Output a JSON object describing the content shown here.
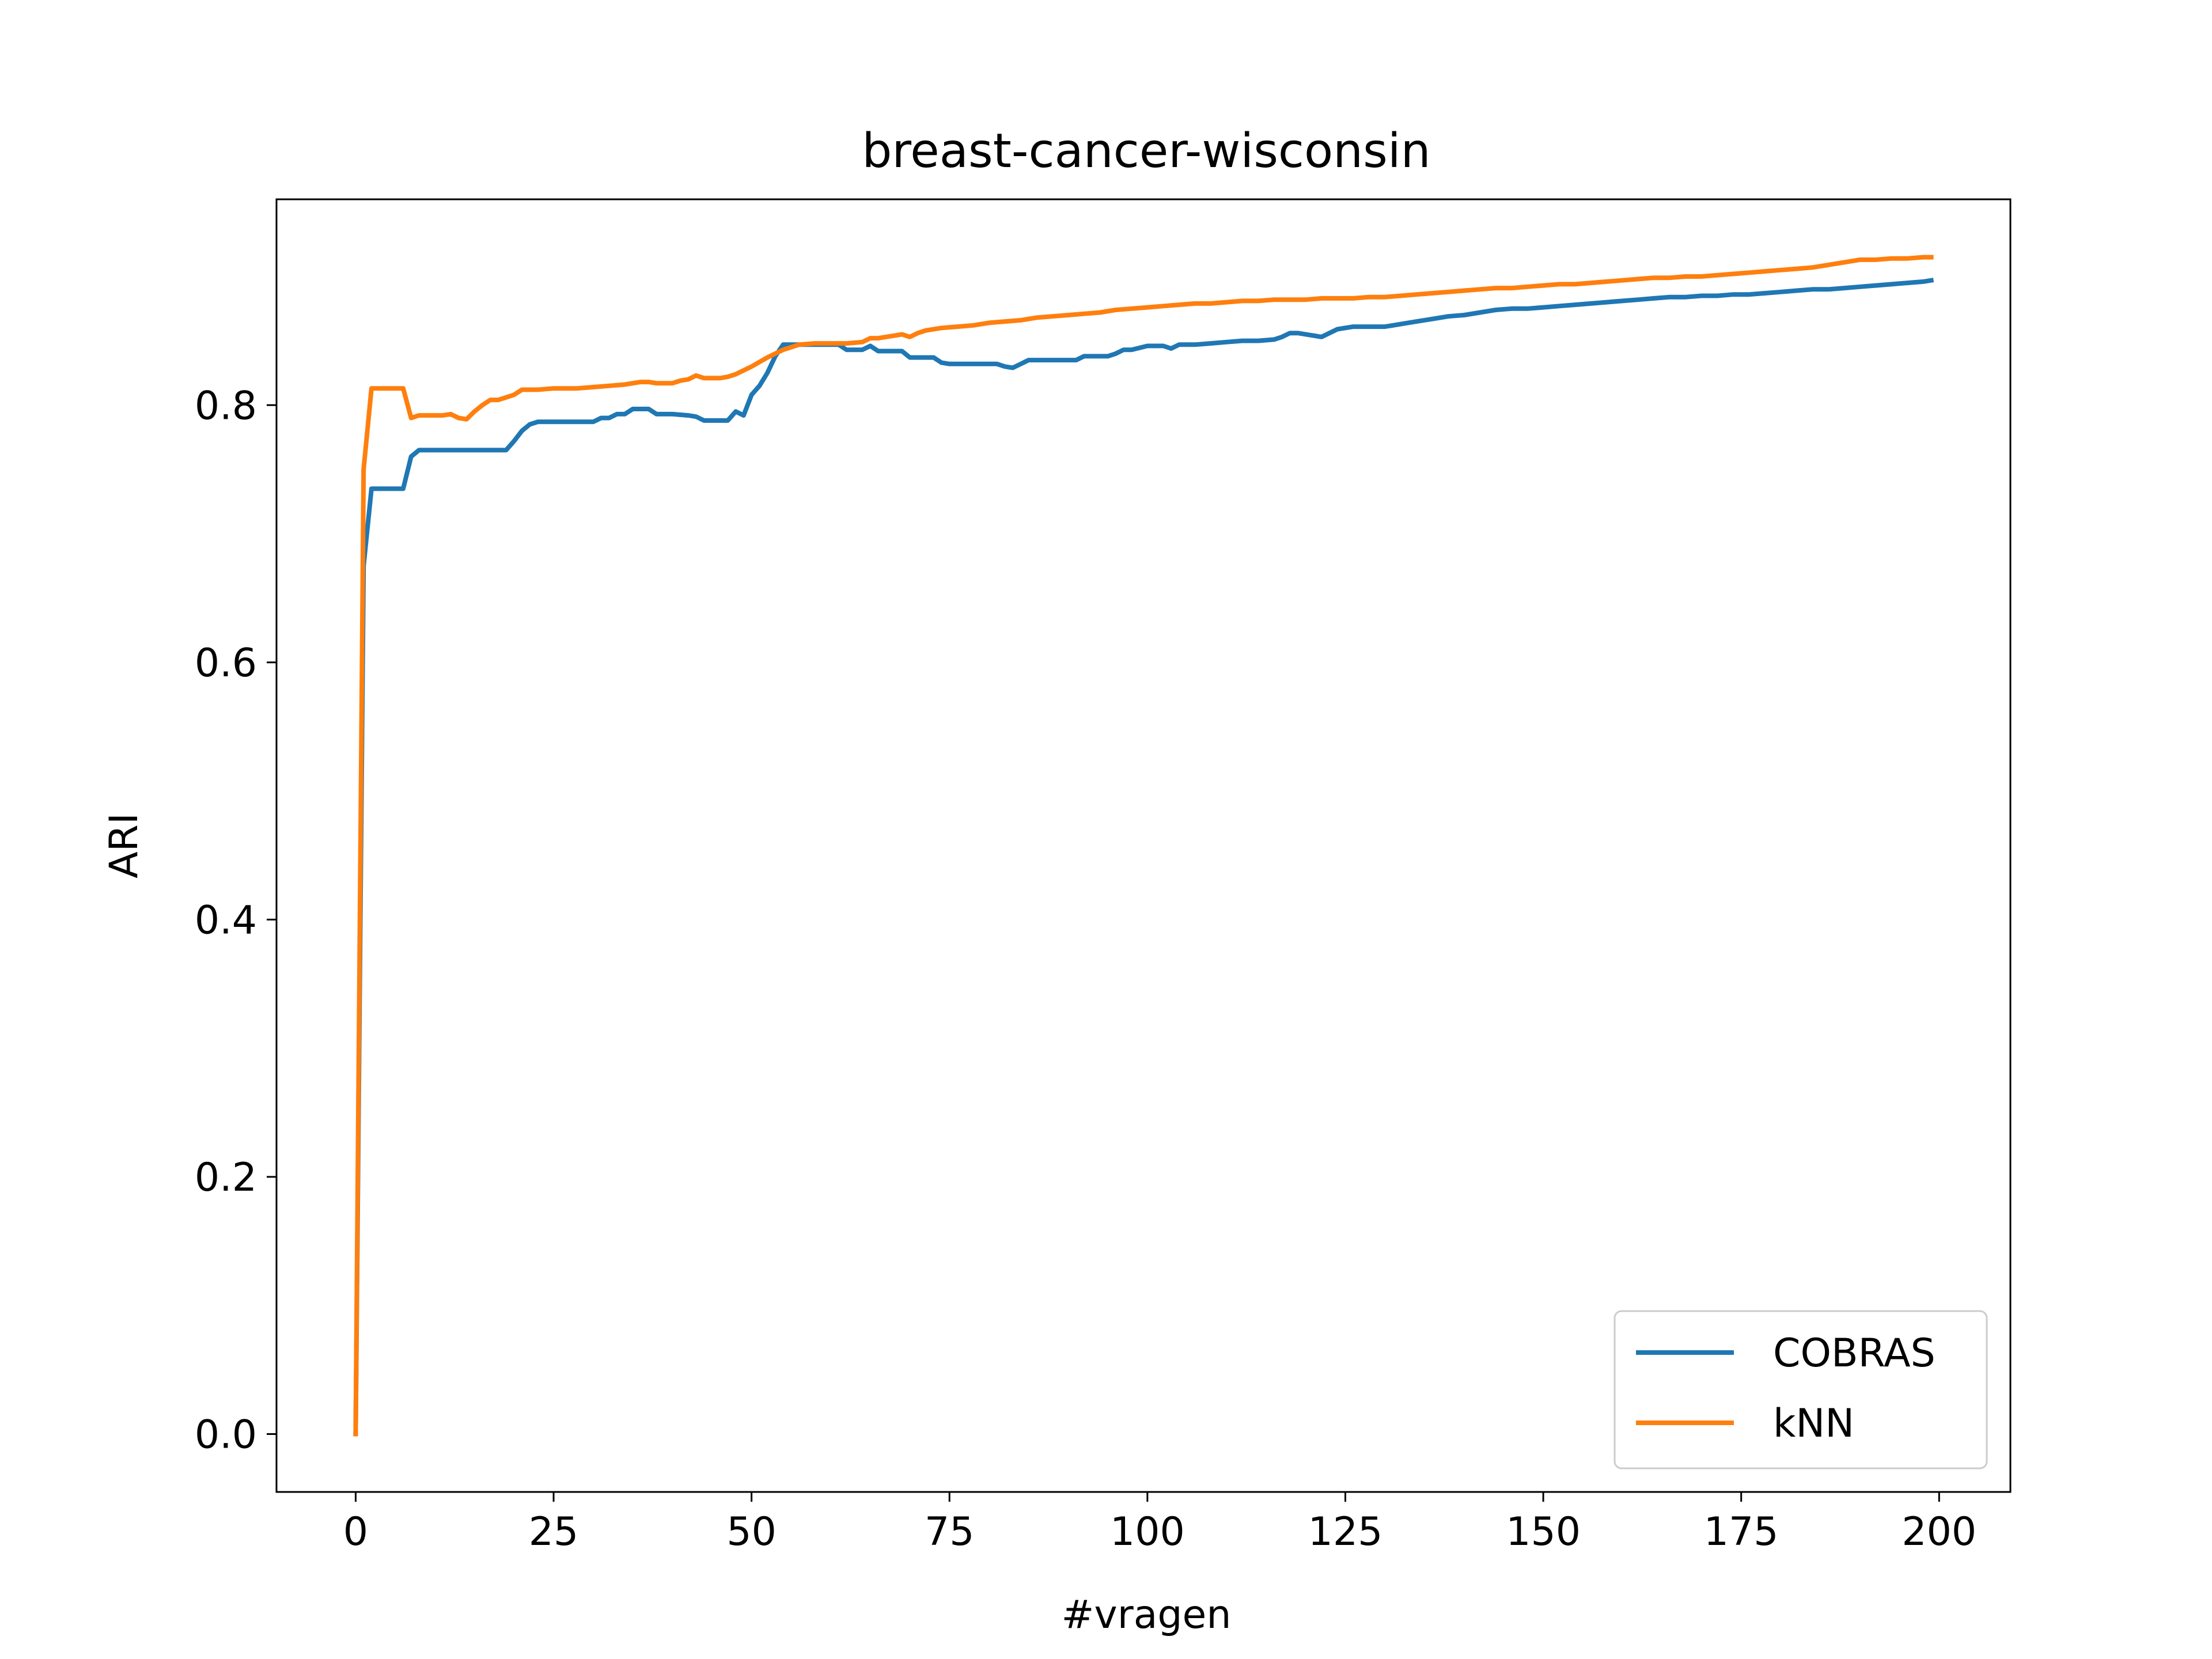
{
  "chart_data": {
    "type": "line",
    "title": "breast-cancer-wisconsin",
    "xlabel": "#vragen",
    "ylabel": "ARI",
    "xlim": [
      -10,
      209
    ],
    "ylim": [
      -0.045,
      0.96
    ],
    "xticks": [
      0,
      25,
      50,
      75,
      100,
      125,
      150,
      175,
      200
    ],
    "xtick_labels": [
      "0",
      "25",
      "50",
      "75",
      "100",
      "125",
      "150",
      "175",
      "200"
    ],
    "yticks": [
      0.0,
      0.2,
      0.4,
      0.6,
      0.8
    ],
    "ytick_labels": [
      "0.0",
      "0.2",
      "0.4",
      "0.6",
      "0.8"
    ],
    "grid": false,
    "legend_position": "lower-right",
    "series": [
      {
        "name": "COBRAS",
        "color": "#1f77b4",
        "x": [
          0,
          1,
          2,
          3,
          4,
          5,
          6,
          7,
          8,
          9,
          10,
          12,
          14,
          16,
          18,
          19,
          20,
          21,
          22,
          23,
          25,
          28,
          30,
          31,
          32,
          33,
          34,
          35,
          36,
          37,
          38,
          40,
          42,
          43,
          44,
          46,
          47,
          48,
          49,
          50,
          51,
          52,
          53,
          54,
          55,
          56,
          57,
          58,
          60,
          61,
          62,
          63,
          64,
          65,
          66,
          68,
          69,
          70,
          72,
          73,
          74,
          75,
          78,
          80,
          81,
          82,
          83,
          84,
          85,
          86,
          88,
          90,
          91,
          92,
          94,
          95,
          96,
          97,
          98,
          100,
          102,
          103,
          104,
          106,
          108,
          110,
          112,
          114,
          116,
          117,
          118,
          119,
          120,
          122,
          124,
          126,
          128,
          130,
          132,
          134,
          136,
          138,
          140,
          142,
          144,
          146,
          148,
          150,
          152,
          154,
          156,
          158,
          160,
          162,
          164,
          166,
          168,
          170,
          172,
          174,
          176,
          178,
          180,
          182,
          184,
          186,
          188,
          190,
          192,
          194,
          196,
          198,
          199
        ],
        "y": [
          0.0,
          0.675,
          0.735,
          0.735,
          0.735,
          0.735,
          0.735,
          0.76,
          0.765,
          0.765,
          0.765,
          0.765,
          0.765,
          0.765,
          0.765,
          0.765,
          0.772,
          0.78,
          0.785,
          0.787,
          0.787,
          0.787,
          0.787,
          0.79,
          0.79,
          0.793,
          0.793,
          0.797,
          0.797,
          0.797,
          0.793,
          0.793,
          0.792,
          0.791,
          0.788,
          0.788,
          0.788,
          0.795,
          0.792,
          0.808,
          0.815,
          0.825,
          0.838,
          0.847,
          0.847,
          0.847,
          0.847,
          0.847,
          0.847,
          0.847,
          0.843,
          0.843,
          0.843,
          0.846,
          0.842,
          0.842,
          0.842,
          0.837,
          0.837,
          0.837,
          0.833,
          0.832,
          0.832,
          0.832,
          0.832,
          0.83,
          0.829,
          0.832,
          0.835,
          0.835,
          0.835,
          0.835,
          0.835,
          0.838,
          0.838,
          0.838,
          0.84,
          0.843,
          0.843,
          0.846,
          0.846,
          0.844,
          0.847,
          0.847,
          0.848,
          0.849,
          0.85,
          0.85,
          0.851,
          0.853,
          0.856,
          0.856,
          0.855,
          0.853,
          0.859,
          0.861,
          0.861,
          0.861,
          0.863,
          0.865,
          0.867,
          0.869,
          0.87,
          0.872,
          0.874,
          0.875,
          0.875,
          0.876,
          0.877,
          0.878,
          0.879,
          0.88,
          0.881,
          0.882,
          0.883,
          0.884,
          0.884,
          0.885,
          0.885,
          0.886,
          0.886,
          0.887,
          0.888,
          0.889,
          0.89,
          0.89,
          0.891,
          0.892,
          0.893,
          0.894,
          0.895,
          0.896,
          0.897
        ]
      },
      {
        "name": "kNN",
        "color": "#ff7f0e",
        "x": [
          0,
          1,
          2,
          3,
          4,
          5,
          6,
          7,
          8,
          9,
          10,
          11,
          12,
          13,
          14,
          15,
          16,
          17,
          18,
          20,
          21,
          22,
          23,
          25,
          28,
          30,
          32,
          34,
          36,
          37,
          38,
          40,
          41,
          42,
          43,
          44,
          45,
          46,
          47,
          48,
          49,
          50,
          52,
          54,
          55,
          56,
          58,
          60,
          62,
          64,
          65,
          66,
          68,
          69,
          70,
          71,
          72,
          74,
          76,
          78,
          80,
          82,
          84,
          86,
          88,
          90,
          92,
          94,
          96,
          98,
          100,
          102,
          104,
          106,
          108,
          110,
          112,
          114,
          116,
          118,
          120,
          122,
          124,
          126,
          128,
          130,
          132,
          134,
          136,
          138,
          140,
          142,
          144,
          146,
          148,
          150,
          152,
          154,
          156,
          158,
          160,
          162,
          164,
          166,
          168,
          170,
          172,
          174,
          176,
          178,
          180,
          182,
          184,
          186,
          188,
          190,
          192,
          194,
          196,
          198,
          199
        ],
        "y": [
          0.0,
          0.75,
          0.813,
          0.813,
          0.813,
          0.813,
          0.813,
          0.79,
          0.792,
          0.792,
          0.792,
          0.792,
          0.793,
          0.79,
          0.789,
          0.795,
          0.8,
          0.804,
          0.804,
          0.808,
          0.812,
          0.812,
          0.812,
          0.813,
          0.813,
          0.814,
          0.815,
          0.816,
          0.818,
          0.818,
          0.817,
          0.817,
          0.819,
          0.82,
          0.823,
          0.821,
          0.821,
          0.821,
          0.822,
          0.824,
          0.827,
          0.83,
          0.837,
          0.843,
          0.845,
          0.847,
          0.848,
          0.848,
          0.848,
          0.849,
          0.852,
          0.852,
          0.854,
          0.855,
          0.853,
          0.856,
          0.858,
          0.86,
          0.861,
          0.862,
          0.864,
          0.865,
          0.866,
          0.868,
          0.869,
          0.87,
          0.871,
          0.872,
          0.874,
          0.875,
          0.876,
          0.877,
          0.878,
          0.879,
          0.879,
          0.88,
          0.881,
          0.881,
          0.882,
          0.882,
          0.882,
          0.883,
          0.883,
          0.883,
          0.884,
          0.884,
          0.885,
          0.886,
          0.887,
          0.888,
          0.889,
          0.89,
          0.891,
          0.891,
          0.892,
          0.893,
          0.894,
          0.894,
          0.895,
          0.896,
          0.897,
          0.898,
          0.899,
          0.899,
          0.9,
          0.9,
          0.901,
          0.902,
          0.903,
          0.904,
          0.905,
          0.906,
          0.907,
          0.909,
          0.911,
          0.913,
          0.913,
          0.914,
          0.914,
          0.915,
          0.915
        ]
      }
    ]
  }
}
